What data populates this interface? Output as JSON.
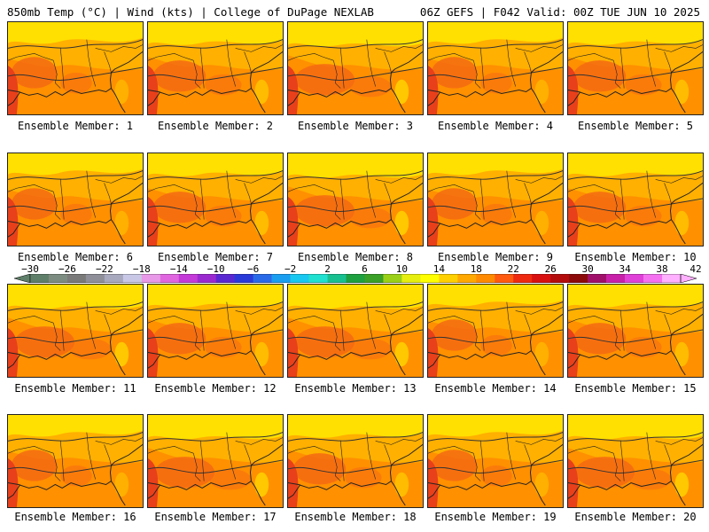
{
  "header": {
    "left": "850mb Temp (°C) | Wind (kts) | College of DuPage NEXLAB",
    "right": "06Z GEFS | F042 Valid: 00Z TUE JUN 10 2025"
  },
  "members": [
    {
      "label": "Ensemble Member: 1",
      "tone": 0
    },
    {
      "label": "Ensemble Member: 2",
      "tone": 1
    },
    {
      "label": "Ensemble Member: 3",
      "tone": 2
    },
    {
      "label": "Ensemble Member: 4",
      "tone": 0
    },
    {
      "label": "Ensemble Member: 5",
      "tone": 1
    },
    {
      "label": "Ensemble Member: 6",
      "tone": 0
    },
    {
      "label": "Ensemble Member: 7",
      "tone": 1
    },
    {
      "label": "Ensemble Member: 8",
      "tone": 2
    },
    {
      "label": "Ensemble Member: 9",
      "tone": 0
    },
    {
      "label": "Ensemble Member: 10",
      "tone": 1
    },
    {
      "label": "Ensemble Member: 11",
      "tone": 2
    },
    {
      "label": "Ensemble Member: 12",
      "tone": 1
    },
    {
      "label": "Ensemble Member: 13",
      "tone": 2
    },
    {
      "label": "Ensemble Member: 14",
      "tone": 0
    },
    {
      "label": "Ensemble Member: 15",
      "tone": 1
    },
    {
      "label": "Ensemble Member: 16",
      "tone": 0
    },
    {
      "label": "Ensemble Member: 17",
      "tone": 2
    },
    {
      "label": "Ensemble Member: 18",
      "tone": 1
    },
    {
      "label": "Ensemble Member: 19",
      "tone": 0
    },
    {
      "label": "Ensemble Member: 20",
      "tone": 2
    }
  ],
  "colorbar": {
    "labels": [
      "−30",
      "−26",
      "−22",
      "−18",
      "−14",
      "−10",
      "−6",
      "−2",
      "2",
      "6",
      "10",
      "14",
      "18",
      "22",
      "26",
      "30",
      "34",
      "38",
      "42"
    ],
    "colors": [
      "#5f7f6a",
      "#7d8c80",
      "#7a7a7a",
      "#8f8f9a",
      "#a8a8bf",
      "#c8c8e6",
      "#e89ae8",
      "#e066e0",
      "#c43ad8",
      "#9a2ad0",
      "#5a28d0",
      "#2a3ad8",
      "#2a6ae8",
      "#1a9ef0",
      "#19c8f0",
      "#20e0d0",
      "#18c090",
      "#1ea040",
      "#3aa028",
      "#9ad018",
      "#e6ee10",
      "#ffff00",
      "#ffd000",
      "#ffa800",
      "#ff8a00",
      "#ff5a10",
      "#ee2a10",
      "#d81010",
      "#b40c0c",
      "#8c0a0a",
      "#a0106a",
      "#c820a8",
      "#e040d8",
      "#f470f0",
      "#ffb0ff"
    ]
  },
  "palette": {
    "cool": "#ffe000",
    "mid": "#ffb000",
    "warm": "#ff9000",
    "hot": "#f56a12",
    "hotter": "#e8401a",
    "contour": "#333333",
    "coast": "#222222"
  }
}
